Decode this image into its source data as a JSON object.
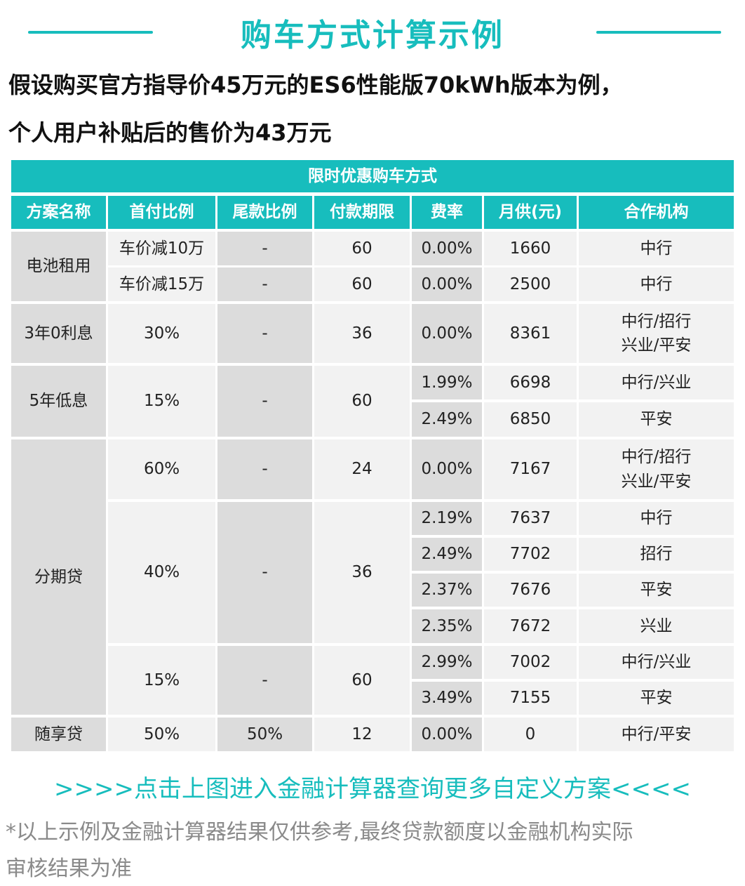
{
  "title": "购车方式计算示例",
  "intro": [
    "假设购买官方指导价45万元的ES6性能版70kWh版本为例，",
    "个人用户补贴后的售价为43万元"
  ],
  "table": {
    "caption": "限时优惠购车方式",
    "headers": [
      "方案名称",
      "首付比例",
      "尾款比例",
      "付款期限",
      "费率",
      "月供(元)",
      "合作机构"
    ],
    "plans": [
      {
        "name": "电池租用",
        "rows": [
          {
            "down": "车价减10万",
            "balloon": "-",
            "term": "60",
            "rate": "0.00%",
            "monthly": "1660",
            "partner": [
              "中行"
            ]
          },
          {
            "down": "车价减15万",
            "balloon": "-",
            "term": "60",
            "rate": "0.00%",
            "monthly": "2500",
            "partner": [
              "中行"
            ]
          }
        ]
      },
      {
        "name": "3年0利息",
        "down": "30%",
        "balloon": "-",
        "term": "36",
        "rows": [
          {
            "rate": "0.00%",
            "monthly": "8361",
            "partner": [
              "中行/招行",
              "兴业/平安"
            ]
          }
        ]
      },
      {
        "name": "5年低息",
        "down": "15%",
        "balloon": "-",
        "term": "60",
        "rows": [
          {
            "rate": "1.99%",
            "monthly": "6698",
            "partner": [
              "中行/兴业"
            ]
          },
          {
            "rate": "2.49%",
            "monthly": "6850",
            "partner": [
              "平安"
            ]
          }
        ]
      },
      {
        "name": "分期贷",
        "groups": [
          {
            "down": "60%",
            "balloon": "-",
            "term": "24",
            "rows": [
              {
                "rate": "0.00%",
                "monthly": "7167",
                "partner": [
                  "中行/招行",
                  "兴业/平安"
                ]
              }
            ]
          },
          {
            "down": "40%",
            "balloon": "-",
            "term": "36",
            "rows": [
              {
                "rate": "2.19%",
                "monthly": "7637",
                "partner": [
                  "中行"
                ]
              },
              {
                "rate": "2.49%",
                "monthly": "7702",
                "partner": [
                  "招行"
                ]
              },
              {
                "rate": "2.37%",
                "monthly": "7676",
                "partner": [
                  "平安"
                ]
              },
              {
                "rate": "2.35%",
                "monthly": "7672",
                "partner": [
                  "兴业"
                ]
              }
            ]
          },
          {
            "down": "15%",
            "balloon": "-",
            "term": "60",
            "rows": [
              {
                "rate": "2.99%",
                "monthly": "7002",
                "partner": [
                  "中行/兴业"
                ]
              },
              {
                "rate": "3.49%",
                "monthly": "7155",
                "partner": [
                  "平安"
                ]
              }
            ]
          }
        ]
      },
      {
        "name": "随享贷",
        "rows": [
          {
            "down": "50%",
            "balloon": "50%",
            "term": "12",
            "rate": "0.00%",
            "monthly": "0",
            "partner": [
              "中行/平安"
            ]
          }
        ]
      }
    ]
  },
  "cta": ">>>>点击上图进入金融计算器查询更多自定义方案<<<<",
  "note": [
    "*以上示例及金融计算器结果仅供参考,最终贷款额度以金融机构实际",
    "审核结果为准"
  ],
  "colors": {
    "accent": "#17bdbd",
    "cell_gray": "#dcdcdc",
    "cell_light": "#f2f2f2",
    "note": "#8a8a8a"
  }
}
